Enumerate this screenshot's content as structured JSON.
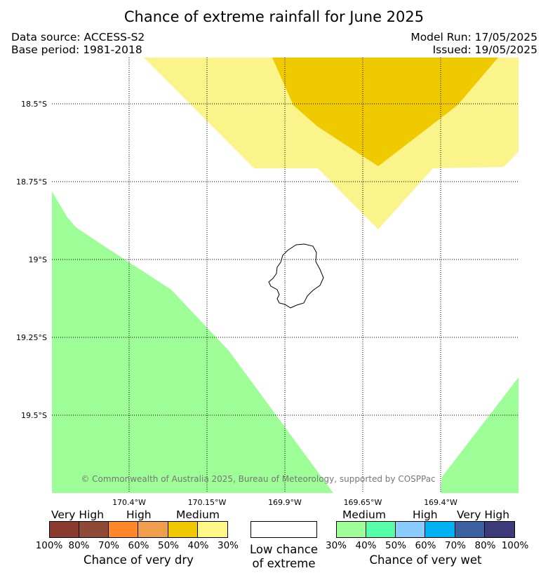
{
  "header": {
    "title": "Chance of extreme rainfall for June 2025",
    "data_source": "Data source: ACCESS-S2",
    "base_period": "Base period: 1981-2018",
    "model_run": "Model Run: 17/05/2025",
    "issued": "Issued: 19/05/2025"
  },
  "map": {
    "lat_labels": [
      "18.5°S",
      "18.75°S",
      "19°S",
      "19.25°S",
      "19.5°S"
    ],
    "lon_labels": [
      "170.4°W",
      "170.15°W",
      "169.9°W",
      "169.65°W",
      "169.4°W"
    ],
    "copyright": "© Commonwealth of Australia 2025, Bureau of Meteorology, supported by COSPPac",
    "colors": {
      "medium_dry": "#f0ca00",
      "low_dry": "#fbf48a",
      "medium_wet": "#9dfd96",
      "ocean": "#ffffff",
      "grid": "#000000"
    }
  },
  "legend": {
    "dry": {
      "headings": [
        "Very High",
        "High",
        "Medium"
      ],
      "colors": [
        "#8b3a2e",
        "#8e4a37",
        "#ff8727",
        "#ef9e4c",
        "#efc800",
        "#fdf788"
      ],
      "ticks": [
        "100%",
        "80%",
        "70%",
        "60%",
        "50%",
        "40%",
        "30%"
      ],
      "caption": "Chance of very dry"
    },
    "low": {
      "color": "#ffffff",
      "caption_line1": "Low chance",
      "caption_line2": "of extreme"
    },
    "wet": {
      "headings": [
        "Medium",
        "High",
        "Very High"
      ],
      "colors": [
        "#9dfd96",
        "#56fea8",
        "#89ccfd",
        "#00b0f0",
        "#3a62a2",
        "#3d3a7a"
      ],
      "ticks": [
        "30%",
        "40%",
        "50%",
        "60%",
        "70%",
        "80%",
        "100%"
      ],
      "caption": "Chance of very wet"
    }
  }
}
